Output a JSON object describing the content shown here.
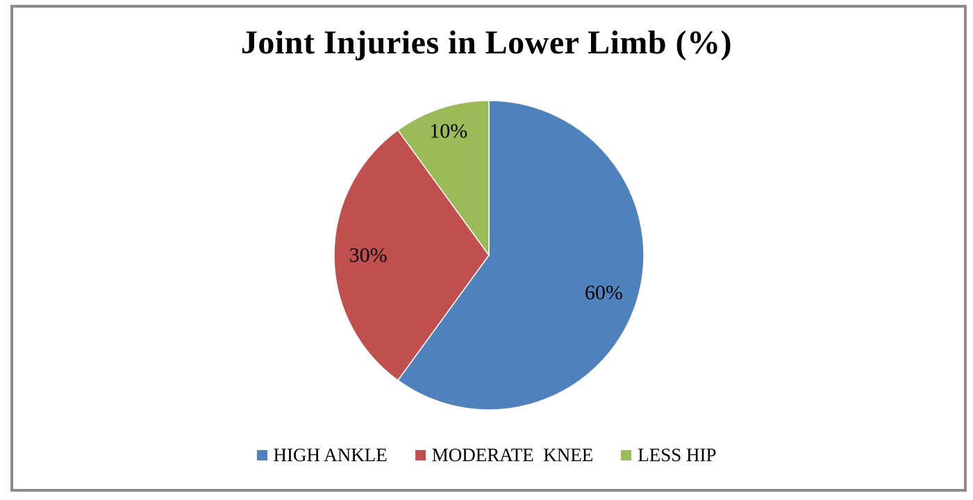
{
  "page": {
    "background": "#ffffff",
    "frame_border_color": "#8a8a8a"
  },
  "chart_data": {
    "type": "pie",
    "title": "Joint Injuries in Lower Limb (%)",
    "categories": [
      "HIGH ANKLE",
      "MODERATE  KNEE",
      "LESS HIP"
    ],
    "values": [
      60,
      30,
      10
    ],
    "data_labels": [
      "60%",
      "30%",
      "10%"
    ],
    "colors": [
      "#4F81BD",
      "#C0504D",
      "#9BBB59"
    ],
    "data_label_color": "#000000",
    "title_color": "#000000",
    "start_angle": 0,
    "clockwise": true,
    "legend_position": "bottom",
    "grid": false
  }
}
